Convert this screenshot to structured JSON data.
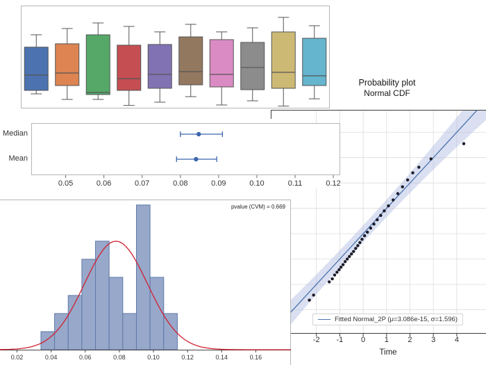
{
  "chart_data": [
    {
      "id": "group-boxplots",
      "type": "boxplot",
      "frame_color": "#b5b5b5",
      "edge_color": "#555555",
      "ylim": [
        0,
        1
      ],
      "boxes": [
        {
          "color": "#4C72B0",
          "whisker_low": 0.127,
          "q1": 0.162,
          "median": 0.317,
          "q3": 0.6,
          "whisker_high": 0.725
        },
        {
          "color": "#DD8452",
          "whisker_low": 0.07,
          "q1": 0.211,
          "median": 0.338,
          "q3": 0.634,
          "whisker_high": 0.789
        },
        {
          "color": "#55A868",
          "whisker_low": 0.07,
          "q1": 0.12,
          "median": 0.141,
          "q3": 0.725,
          "whisker_high": 0.845
        },
        {
          "color": "#C44E52",
          "whisker_low": 0.01,
          "q1": 0.162,
          "median": 0.28,
          "q3": 0.62,
          "whisker_high": 0.81
        },
        {
          "color": "#8172B3",
          "whisker_low": 0.042,
          "q1": 0.183,
          "median": 0.324,
          "q3": 0.627,
          "whisker_high": 0.754
        },
        {
          "color": "#937860",
          "whisker_low": 0.099,
          "q1": 0.218,
          "median": 0.352,
          "q3": 0.704,
          "whisker_high": 0.831
        },
        {
          "color": "#DA8BC3",
          "whisker_low": 0.014,
          "q1": 0.197,
          "median": 0.324,
          "q3": 0.676,
          "whisker_high": 0.754
        },
        {
          "color": "#8C8C8C",
          "whisker_low": 0.056,
          "q1": 0.169,
          "median": 0.394,
          "q3": 0.648,
          "whisker_high": 0.796
        },
        {
          "color": "#CCB974",
          "whisker_low": 0.003,
          "q1": 0.183,
          "median": 0.345,
          "q3": 0.754,
          "whisker_high": 0.901
        },
        {
          "color": "#64B5CD",
          "whisker_low": 0.077,
          "q1": 0.211,
          "median": 0.31,
          "q3": 0.69,
          "whisker_high": 0.817
        }
      ]
    },
    {
      "id": "mean-median-intervals",
      "type": "interval",
      "marker_color": "#3A66AD",
      "frame_color": "#b5b5b5",
      "tick_color": "#333333",
      "xlim": [
        0.041,
        0.1218
      ],
      "xticks": [
        "0.05",
        "0.06",
        "0.07",
        "0.08",
        "0.09",
        "0.10",
        "0.11",
        "0.12"
      ],
      "xtick_values": [
        0.05,
        0.06,
        0.07,
        0.08,
        0.09,
        0.1,
        0.11,
        0.12
      ],
      "rows": [
        {
          "label": "Median",
          "low": 0.08,
          "center": 0.0848,
          "high": 0.091
        },
        {
          "label": "Mean",
          "low": 0.079,
          "center": 0.0841,
          "high": 0.0895
        }
      ]
    },
    {
      "id": "histogram-with-fit",
      "type": "histogram",
      "annotation": "pvalue (CVM) = 0.669",
      "bar_fill": "#97A8CA",
      "bar_edge": "#5F7AA8",
      "frame_color": "#b5b5b5",
      "axis_color": "#444444",
      "tick_color": "#333333",
      "xlim": [
        0.01,
        0.1806
      ],
      "ylim": [
        0,
        8.3
      ],
      "bin_start": 0.034,
      "bin_width": 0.008,
      "counts": [
        1,
        2,
        3,
        5,
        6,
        4,
        2,
        8,
        4,
        2
      ],
      "xticks": [
        "0.02",
        "0.04",
        "0.06",
        "0.08",
        "0.10",
        "0.12",
        "0.14",
        "0.16"
      ],
      "xtick_values": [
        0.02,
        0.04,
        0.06,
        0.08,
        0.1,
        0.12,
        0.14,
        0.16
      ],
      "fit_curve": {
        "mu": 0.078,
        "sigma": 0.0185,
        "amplitude": 6.0,
        "color": "#D22030"
      }
    },
    {
      "id": "probability-plot",
      "type": "probability",
      "title_line1": "Probability plot",
      "title_line2": "Normal CDF",
      "xlabel": "Time",
      "legend": "Fitted Normal_2P (μ=3.086e-15, σ=1.596)",
      "line_color": "#4C72B0",
      "band_color": "#AEBADF",
      "band_opacity": 0.45,
      "point_color": "#1B1B28",
      "grid_color": "#DCDCDC",
      "spine_color": "#3C3C3C",
      "xlim": [
        -3.95,
        5.25
      ],
      "ylim": [
        -3.943,
        4.883
      ],
      "xticks": [
        "-2",
        "-1",
        "0",
        "1",
        "2",
        "3",
        "4"
      ],
      "xtick_values": [
        -2,
        -1,
        0,
        1,
        2,
        3,
        4
      ],
      "ytick_values": [
        -3,
        -2,
        -1,
        0,
        1,
        2,
        3,
        4
      ],
      "band_half_width": {
        "base": 0.33,
        "quad": 0.016
      },
      "points": [
        [
          -2.3,
          -2.62
        ],
        [
          -2.12,
          -2.42
        ],
        [
          -1.45,
          -1.9
        ],
        [
          -1.32,
          -1.78
        ],
        [
          -1.22,
          -1.63
        ],
        [
          -1.12,
          -1.52
        ],
        [
          -1.03,
          -1.42
        ],
        [
          -0.95,
          -1.32
        ],
        [
          -0.86,
          -1.22
        ],
        [
          -0.77,
          -1.1
        ],
        [
          -0.68,
          -1.0
        ],
        [
          -0.59,
          -0.9
        ],
        [
          -0.5,
          -0.8
        ],
        [
          -0.41,
          -0.7
        ],
        [
          -0.32,
          -0.58
        ],
        [
          -0.23,
          -0.47
        ],
        [
          -0.14,
          -0.35
        ],
        [
          -0.05,
          -0.22
        ],
        [
          0.06,
          -0.08
        ],
        [
          0.18,
          0.06
        ],
        [
          0.32,
          0.22
        ],
        [
          0.46,
          0.38
        ],
        [
          0.6,
          0.55
        ],
        [
          0.75,
          0.72
        ],
        [
          0.9,
          0.9
        ],
        [
          1.08,
          1.1
        ],
        [
          1.28,
          1.33
        ],
        [
          1.48,
          1.58
        ],
        [
          1.68,
          1.85
        ],
        [
          1.9,
          2.12
        ],
        [
          2.12,
          2.4
        ],
        [
          2.38,
          2.62
        ],
        [
          2.9,
          2.95
        ],
        [
          4.3,
          3.55
        ]
      ]
    }
  ]
}
